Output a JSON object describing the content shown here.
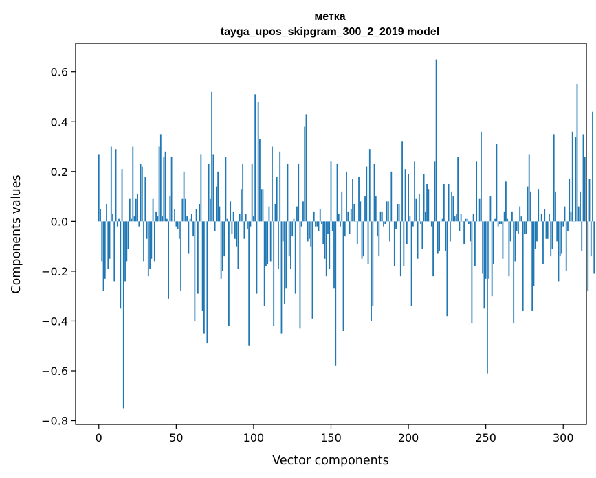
{
  "chart_data": {
    "type": "bar",
    "title_line1": "метка",
    "title_line2": "tayga_upos_skipgram_300_2_2019 model",
    "xlabel": "Vector components",
    "ylabel": "Components values",
    "xlim": [
      -15,
      315
    ],
    "ylim": [
      -0.815,
      0.715
    ],
    "xticks": [
      0,
      50,
      100,
      150,
      200,
      250,
      300
    ],
    "xtick_labels": [
      "0",
      "50",
      "100",
      "150",
      "200",
      "250",
      "300"
    ],
    "yticks": [
      -0.8,
      -0.6,
      -0.4,
      -0.2,
      0.0,
      0.2,
      0.4,
      0.6
    ],
    "ytick_labels": [
      "−0.8",
      "−0.6",
      "−0.4",
      "−0.2",
      "0.0",
      "0.2",
      "0.4",
      "0.6"
    ],
    "bar_color": "#1f77b4",
    "values": [
      0.27,
      0.05,
      -0.16,
      -0.28,
      -0.23,
      0.07,
      -0.19,
      -0.15,
      0.3,
      0.03,
      -0.24,
      0.29,
      -0.02,
      0.01,
      -0.35,
      0.21,
      -0.75,
      -0.24,
      -0.16,
      -0.11,
      0.09,
      0.01,
      0.3,
      0.02,
      0.09,
      0.11,
      -0.02,
      0.23,
      0.22,
      -0.16,
      0.18,
      -0.07,
      -0.22,
      -0.19,
      -0.15,
      0.09,
      -0.16,
      0.04,
      0.02,
      0.3,
      0.35,
      0.02,
      0.26,
      0.28,
      0.01,
      -0.31,
      0.1,
      0.26,
      0.0,
      0.05,
      -0.02,
      -0.03,
      -0.07,
      -0.28,
      0.09,
      0.2,
      0.09,
      0.02,
      -0.13,
      0.01,
      0.03,
      -0.06,
      -0.4,
      0.05,
      -0.29,
      0.07,
      0.27,
      -0.36,
      -0.45,
      0.0,
      -0.49,
      0.23,
      0.09,
      0.52,
      0.27,
      -0.04,
      0.14,
      0.2,
      0.06,
      -0.23,
      -0.2,
      -0.14,
      0.26,
      0.01,
      -0.42,
      0.08,
      -0.05,
      0.04,
      -0.07,
      -0.1,
      -0.19,
      0.03,
      0.13,
      0.23,
      -0.07,
      0.03,
      -0.03,
      -0.5,
      -0.02,
      0.23,
      0.02,
      0.51,
      -0.29,
      0.48,
      0.33,
      0.13,
      0.13,
      -0.34,
      -0.18,
      -0.17,
      0.06,
      -0.16,
      0.3,
      -0.42,
      0.07,
      0.18,
      -0.19,
      0.28,
      -0.45,
      -0.08,
      -0.33,
      -0.27,
      0.23,
      -0.14,
      -0.19,
      -0.06,
      0.01,
      -0.29,
      0.06,
      0.23,
      -0.43,
      -0.02,
      0.08,
      0.38,
      0.43,
      -0.08,
      -0.07,
      -0.1,
      -0.39,
      0.04,
      -0.02,
      -0.02,
      -0.04,
      0.05,
      -0.01,
      -0.09,
      -0.15,
      -0.22,
      -0.05,
      -0.19,
      0.24,
      -0.04,
      -0.27,
      -0.58,
      0.23,
      0.03,
      -0.02,
      0.12,
      -0.44,
      -0.06,
      0.2,
      0.04,
      -0.05,
      0.05,
      0.17,
      0.07,
      0.0,
      -0.09,
      0.18,
      0.08,
      -0.15,
      -0.14,
      0.1,
      0.22,
      -0.17,
      0.29,
      -0.4,
      -0.34,
      0.23,
      0.1,
      -0.06,
      -0.14,
      0.04,
      0.04,
      -0.02,
      -0.01,
      0.08,
      0.08,
      -0.08,
      0.2,
      0.0,
      -0.18,
      -0.03,
      0.07,
      0.07,
      -0.22,
      0.32,
      -0.18,
      0.21,
      -0.09,
      0.19,
      0.02,
      -0.34,
      -0.02,
      0.24,
      0.09,
      -0.15,
      0.11,
      -0.01,
      -0.11,
      0.19,
      0.04,
      0.15,
      0.13,
      0.0,
      -0.02,
      -0.22,
      0.24,
      0.65,
      -0.13,
      -0.12,
      0.0,
      0.01,
      0.15,
      -0.12,
      -0.38,
      0.15,
      -0.08,
      0.12,
      0.1,
      0.02,
      0.03,
      0.26,
      -0.04,
      0.03,
      0.0,
      -0.09,
      0.01,
      0.01,
      -0.01,
      -0.08,
      -0.41,
      0.03,
      -0.18,
      0.24,
      0.0,
      0.09,
      0.36,
      -0.21,
      -0.35,
      -0.23,
      -0.61,
      -0.23,
      0.1,
      -0.3,
      -0.17,
      0.01,
      0.31,
      -0.02,
      -0.01,
      -0.01,
      -0.15,
      0.04,
      0.16,
      0.01,
      -0.22,
      -0.08,
      0.04,
      -0.41,
      -0.16,
      -0.04,
      -0.05,
      0.06,
      0.02,
      -0.36,
      -0.05,
      -0.05,
      0.14,
      0.27,
      0.12,
      -0.36,
      -0.26,
      -0.11,
      -0.08,
      0.13,
      0.0,
      0.03,
      -0.17,
      0.05,
      -0.07,
      -0.07,
      0.03,
      -0.14,
      -0.11,
      0.35,
      0.12,
      -0.08,
      -0.24,
      -0.14,
      -0.13,
      -0.02,
      0.06,
      -0.2,
      -0.04,
      0.17,
      0.04,
      0.36,
      0.0,
      0.34,
      0.55,
      0.06,
      0.12,
      -0.12,
      0.35,
      0.26,
      0.0,
      -0.28,
      0.17,
      -0.14,
      0.44,
      -0.21
    ]
  }
}
